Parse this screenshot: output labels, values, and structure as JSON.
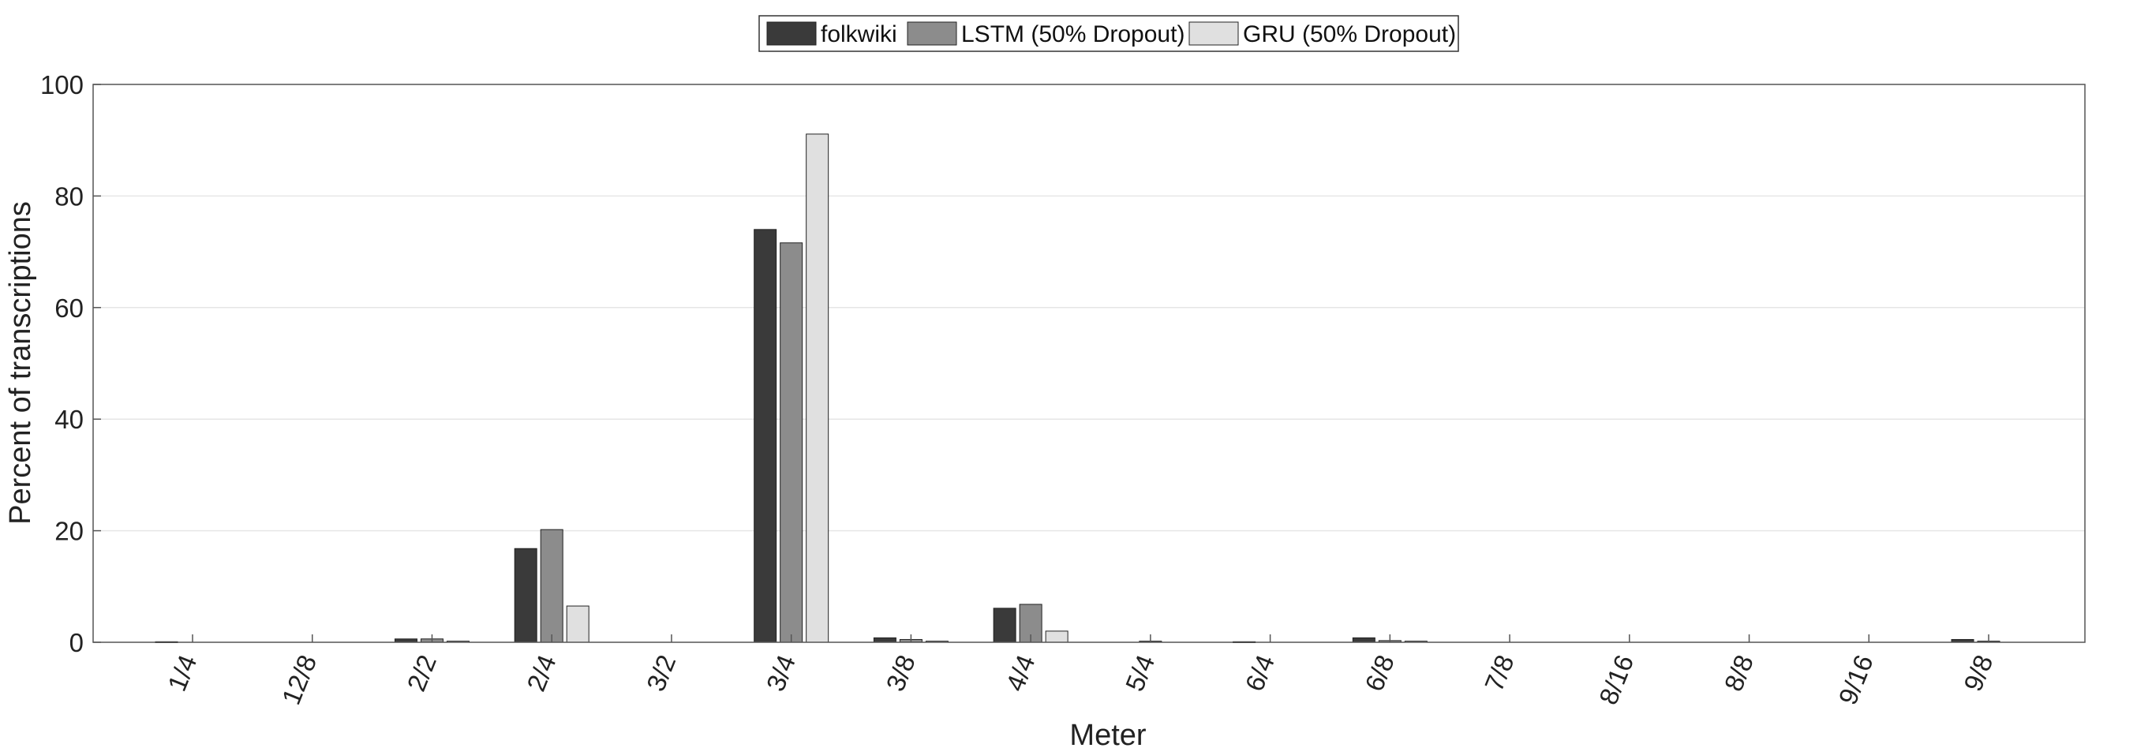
{
  "chart_data": {
    "type": "bar",
    "title": "",
    "xlabel": "Meter",
    "ylabel": "Percent of transcriptions",
    "ylim": [
      0,
      100
    ],
    "yticks": [
      0,
      20,
      40,
      60,
      80,
      100
    ],
    "ytick_labels": [
      "0",
      "20",
      "40",
      "60",
      "80",
      "100"
    ],
    "grid": "horizontal",
    "legend_position": "top-center",
    "categories": [
      "1/4",
      "12/8",
      "2/2",
      "2/4",
      "3/2",
      "3/4",
      "3/8",
      "4/4",
      "5/4",
      "6/4",
      "6/8",
      "7/8",
      "8/16",
      "8/8",
      "9/16",
      "9/8"
    ],
    "series": [
      {
        "name": "folkwiki",
        "color": "#3a3a3a",
        "values": [
          0.1,
          0,
          0.6,
          16.8,
          0,
          74.0,
          0.8,
          6.1,
          0,
          0.1,
          0.8,
          0,
          0,
          0,
          0,
          0.5
        ]
      },
      {
        "name": "LSTM (50% Dropout)",
        "color": "#8c8c8c",
        "values": [
          0,
          0,
          0.6,
          20.2,
          0,
          71.6,
          0.5,
          6.8,
          0.2,
          0,
          0.3,
          0,
          0,
          0,
          0,
          0.2
        ]
      },
      {
        "name": "GRU (50% Dropout)",
        "color": "#e0e0e0",
        "values": [
          0,
          0,
          0.2,
          6.5,
          0,
          91.1,
          0.2,
          2.0,
          0,
          0,
          0.2,
          0,
          0,
          0,
          0,
          0
        ]
      }
    ]
  }
}
